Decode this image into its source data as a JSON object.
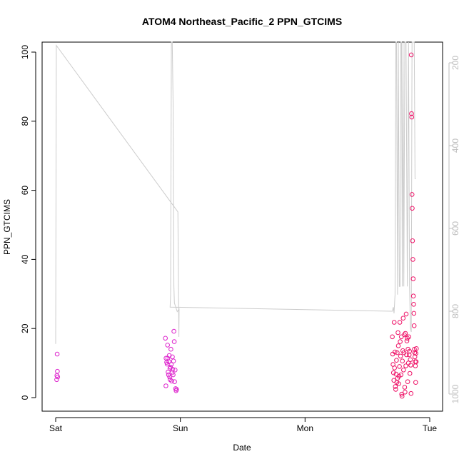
{
  "chart_data": {
    "type": "scatter",
    "title": "ATOM4 Northeast_Pacific_2 PPN_GTCIMS",
    "xlabel": "Date",
    "ylabel": "PPN_GTCIMS",
    "x_ticks": [
      "Sat",
      "Sun",
      "Mon",
      "Tue"
    ],
    "x_range_days": [
      0.0,
      3.07
    ],
    "ylim": [
      -4,
      104
    ],
    "y_ticks": [
      0,
      20,
      40,
      60,
      80,
      100
    ],
    "y_right_ticks": [
      200,
      400,
      600,
      800,
      1000
    ],
    "y_right_range": [
      1041,
      158
    ],
    "colors": {
      "points_early": "#dd22cc",
      "points_late": "#ee1166",
      "secondary_line": "#cccccc",
      "right_axis": "#bdbdbd"
    },
    "series": [
      {
        "values": [
          {
            "x": 0.012,
            "y": 12.6
          },
          {
            "x": 0.014,
            "y": 7.6
          },
          {
            "x": 0.01,
            "y": 6.4
          },
          {
            "x": 0.008,
            "y": 5.2
          },
          {
            "x": 0.016,
            "y": 6.0
          },
          {
            "x": 0.88,
            "y": 17.2
          },
          {
            "x": 0.885,
            "y": 11.4
          },
          {
            "x": 0.89,
            "y": 10.2
          },
          {
            "x": 0.894,
            "y": 9.7
          },
          {
            "x": 0.897,
            "y": 15.2
          },
          {
            "x": 0.899,
            "y": 11.4
          },
          {
            "x": 0.902,
            "y": 7.4
          },
          {
            "x": 0.905,
            "y": 6.6
          },
          {
            "x": 0.908,
            "y": 10.4
          },
          {
            "x": 0.911,
            "y": 12.2
          },
          {
            "x": 0.914,
            "y": 6.0
          },
          {
            "x": 0.918,
            "y": 5.2
          },
          {
            "x": 0.921,
            "y": 8.8
          },
          {
            "x": 0.924,
            "y": 14.0
          },
          {
            "x": 0.927,
            "y": 9.6
          },
          {
            "x": 0.93,
            "y": 4.8
          },
          {
            "x": 0.933,
            "y": 7.2
          },
          {
            "x": 0.936,
            "y": 11.8
          },
          {
            "x": 0.939,
            "y": 8.2
          },
          {
            "x": 0.942,
            "y": 6.6
          },
          {
            "x": 0.945,
            "y": 10.6
          },
          {
            "x": 0.948,
            "y": 19.2
          },
          {
            "x": 0.951,
            "y": 16.2
          },
          {
            "x": 0.954,
            "y": 4.6
          },
          {
            "x": 0.958,
            "y": 8.0
          },
          {
            "x": 0.962,
            "y": 2.6
          },
          {
            "x": 0.966,
            "y": 2.0
          },
          {
            "x": 0.97,
            "y": 2.4
          },
          {
            "x": 0.884,
            "y": 3.4
          },
          {
            "x": 0.916,
            "y": 8.4
          }
        ]
      },
      {
        "values": [
          {
            "x": 2.7,
            "y": 17.6
          },
          {
            "x": 2.703,
            "y": 12.6
          },
          {
            "x": 2.706,
            "y": 9.6
          },
          {
            "x": 2.709,
            "y": 7.2
          },
          {
            "x": 2.712,
            "y": 5.0
          },
          {
            "x": 2.715,
            "y": 21.8
          },
          {
            "x": 2.718,
            "y": 8.6
          },
          {
            "x": 2.721,
            "y": 13.2
          },
          {
            "x": 2.724,
            "y": 3.2
          },
          {
            "x": 2.727,
            "y": 2.4
          },
          {
            "x": 2.73,
            "y": 6.8
          },
          {
            "x": 2.733,
            "y": 10.8
          },
          {
            "x": 2.736,
            "y": 4.4
          },
          {
            "x": 2.739,
            "y": 13.0
          },
          {
            "x": 2.742,
            "y": 5.6
          },
          {
            "x": 2.745,
            "y": 18.8
          },
          {
            "x": 2.748,
            "y": 15.0
          },
          {
            "x": 2.751,
            "y": 4.0
          },
          {
            "x": 2.754,
            "y": 6.2
          },
          {
            "x": 2.757,
            "y": 9.0
          },
          {
            "x": 2.76,
            "y": 21.8
          },
          {
            "x": 2.763,
            "y": 16.2
          },
          {
            "x": 2.766,
            "y": 12.0
          },
          {
            "x": 2.769,
            "y": 6.6
          },
          {
            "x": 2.772,
            "y": 17.6
          },
          {
            "x": 2.775,
            "y": 1.0
          },
          {
            "x": 2.778,
            "y": 0.4
          },
          {
            "x": 2.781,
            "y": 10.6
          },
          {
            "x": 2.784,
            "y": 13.6
          },
          {
            "x": 2.787,
            "y": 23.0
          },
          {
            "x": 2.79,
            "y": 8.0
          },
          {
            "x": 2.793,
            "y": 13.0
          },
          {
            "x": 2.796,
            "y": 18.2
          },
          {
            "x": 2.799,
            "y": 3.0
          },
          {
            "x": 2.802,
            "y": 1.6
          },
          {
            "x": 2.805,
            "y": 18.6
          },
          {
            "x": 2.808,
            "y": 9.2
          },
          {
            "x": 2.811,
            "y": 24.2
          },
          {
            "x": 2.814,
            "y": 12.4
          },
          {
            "x": 2.817,
            "y": 16.4
          },
          {
            "x": 2.82,
            "y": 17.2
          },
          {
            "x": 2.823,
            "y": 4.6
          },
          {
            "x": 2.826,
            "y": 14.0
          },
          {
            "x": 2.829,
            "y": 10.0
          },
          {
            "x": 2.832,
            "y": 17.6
          },
          {
            "x": 2.835,
            "y": 12.4
          },
          {
            "x": 2.838,
            "y": 13.4
          },
          {
            "x": 2.841,
            "y": 7.0
          },
          {
            "x": 2.844,
            "y": 11.0
          },
          {
            "x": 2.847,
            "y": 9.4
          },
          {
            "x": 2.85,
            "y": 1.2
          },
          {
            "x": 2.852,
            "y": 99.2
          },
          {
            "x": 2.854,
            "y": 82.2
          },
          {
            "x": 2.856,
            "y": 81.2
          },
          {
            "x": 2.858,
            "y": 58.8
          },
          {
            "x": 2.86,
            "y": 54.8
          },
          {
            "x": 2.862,
            "y": 45.4
          },
          {
            "x": 2.865,
            "y": 40.0
          },
          {
            "x": 2.867,
            "y": 34.4
          },
          {
            "x": 2.869,
            "y": 29.4
          },
          {
            "x": 2.871,
            "y": 27.0
          },
          {
            "x": 2.873,
            "y": 24.4
          },
          {
            "x": 2.875,
            "y": 20.8
          },
          {
            "x": 2.877,
            "y": 14.0
          },
          {
            "x": 2.879,
            "y": 13.0
          },
          {
            "x": 2.881,
            "y": 11.8
          },
          {
            "x": 2.883,
            "y": 10.4
          },
          {
            "x": 2.885,
            "y": 9.2
          },
          {
            "x": 2.887,
            "y": 4.4
          },
          {
            "x": 2.889,
            "y": 12.8
          },
          {
            "x": 2.891,
            "y": 10.4
          },
          {
            "x": 2.893,
            "y": 14.2
          }
        ]
      }
    ],
    "secondary_line": {
      "x": [
        0.0,
        0.005,
        0.98,
        0.988,
        0.99,
        0.975,
        0.952,
        0.948,
        0.942,
        0.935,
        0.928,
        0.922,
        0.918,
        2.7,
        2.708,
        2.714,
        2.722,
        2.728,
        2.734,
        2.742,
        2.748,
        2.756,
        2.762,
        2.768,
        2.774,
        2.78,
        2.786,
        2.792,
        2.8,
        2.81,
        2.82,
        2.83,
        2.838,
        2.845,
        2.852,
        2.858,
        2.864,
        2.87,
        2.876,
        2.882,
        2.888
      ],
      "y": [
        879,
        158,
        560,
        862,
        795,
        801,
        780,
        740,
        300,
        100,
        100,
        760,
        790,
        800,
        790,
        805,
        760,
        100,
        120,
        760,
        100,
        740,
        740,
        100,
        120,
        740,
        100,
        740,
        100,
        120,
        740,
        100,
        740,
        840,
        850,
        100,
        120,
        100,
        100,
        480,
        480
      ]
    }
  }
}
